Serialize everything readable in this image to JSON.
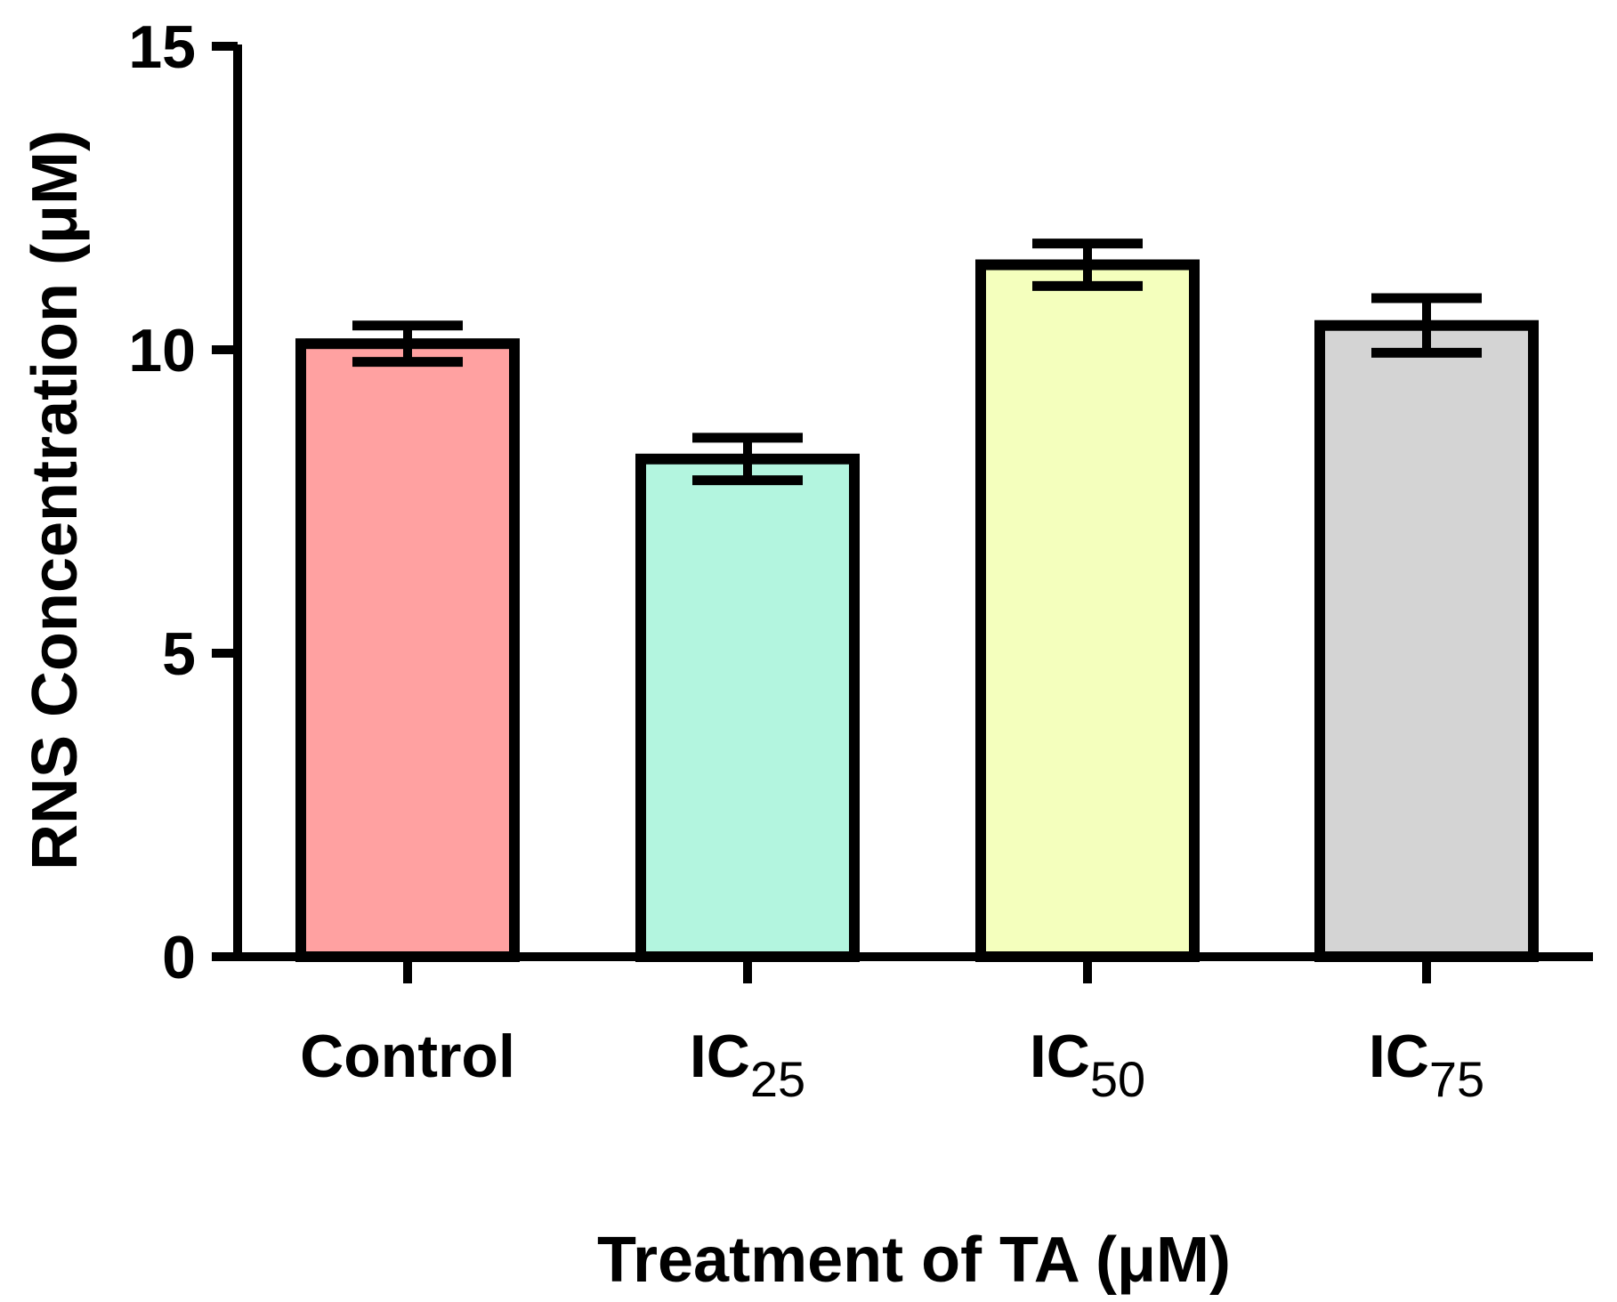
{
  "chart_data": {
    "type": "bar",
    "title": "",
    "xlabel": "Treatment of TA (μM)",
    "ylabel": "RNS Concentration (μM)",
    "ylim": [
      0,
      15
    ],
    "yticks": [
      0,
      5,
      10,
      15
    ],
    "grid": false,
    "legend": "none",
    "categories": [
      {
        "main": "Control",
        "sub": ""
      },
      {
        "main": "IC",
        "sub": "25"
      },
      {
        "main": "IC",
        "sub": "50"
      },
      {
        "main": "IC",
        "sub": "75"
      }
    ],
    "values": [
      10.1,
      8.2,
      11.4,
      10.4
    ],
    "errors": [
      0.3,
      0.35,
      0.35,
      0.45
    ],
    "colors": [
      "#FFA1A1",
      "#B3F5DF",
      "#F4FFBD",
      "#D4D4D4"
    ],
    "stroke_color": "#000000"
  }
}
